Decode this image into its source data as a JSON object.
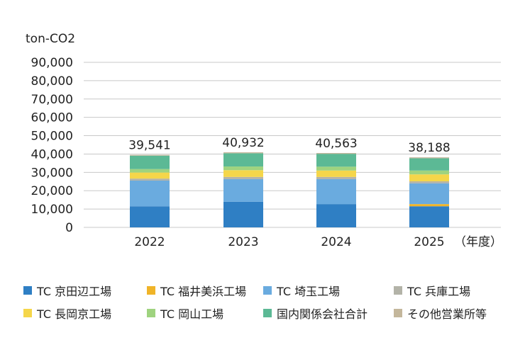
{
  "chart_data": {
    "type": "bar",
    "stacked": true,
    "unit_label": "ton-CO2",
    "x_unit_label": "（年度）",
    "categories": [
      "2022",
      "2023",
      "2024",
      "2025"
    ],
    "totals": [
      "39,541",
      "40,932",
      "40,563",
      "38,188"
    ],
    "ylim": [
      0,
      90000
    ],
    "yticks": [
      "0",
      "10,000",
      "20,000",
      "30,000",
      "40,000",
      "50,000",
      "60,000",
      "70,000",
      "80,000",
      "90,000"
    ],
    "grid": true,
    "legend_position": "bottom",
    "series": [
      {
        "name": "TC 京田辺工場",
        "color": "#2f7fc4",
        "values": [
          11500,
          14000,
          12700,
          11500
        ]
      },
      {
        "name": "TC 福井美浜工場",
        "color": "#f0b428",
        "values": [
          0,
          0,
          0,
          1200
        ]
      },
      {
        "name": "TC 埼玉工場",
        "color": "#6aabdf",
        "values": [
          14000,
          12300,
          13600,
          11300
        ]
      },
      {
        "name": "TC 兵庫工場",
        "color": "#b3b3a8",
        "values": [
          1100,
          1200,
          1200,
          1100
        ]
      },
      {
        "name": "TC 長岡京工場",
        "color": "#f5d64a",
        "values": [
          3300,
          3700,
          3500,
          3800
        ]
      },
      {
        "name": "TC 岡山工場",
        "color": "#9fd37f",
        "values": [
          1900,
          2000,
          2100,
          2100
        ]
      },
      {
        "name": "国内関係会社合計",
        "color": "#5cb995",
        "values": [
          7300,
          7200,
          7000,
          6700
        ]
      },
      {
        "name": "その他営業所等",
        "color": "#c4b79c",
        "values": [
          441,
          532,
          463,
          488
        ]
      }
    ]
  }
}
